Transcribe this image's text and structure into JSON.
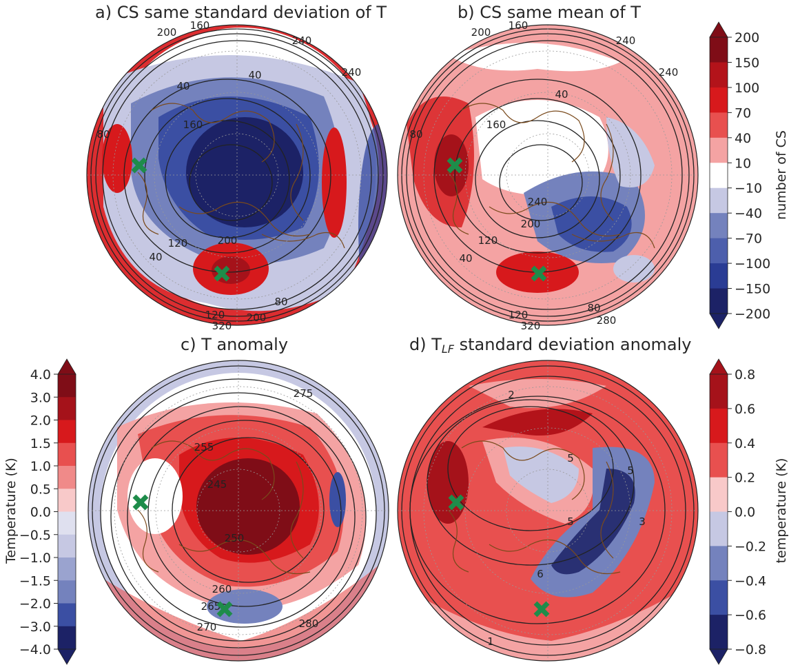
{
  "figure": {
    "panels": [
      {
        "id": "a",
        "title": "a) CS same standard deviation of T",
        "contour_labels": [
          "200",
          "160",
          "240",
          "240",
          "40",
          "40",
          "160",
          "80",
          "200",
          "120",
          "40",
          "120",
          "80",
          "320",
          "200"
        ]
      },
      {
        "id": "b",
        "title": "b) CS same mean of T",
        "contour_labels": [
          "200",
          "160",
          "240",
          "240",
          "40",
          "160",
          "80",
          "240",
          "200",
          "120",
          "40",
          "120",
          "80",
          "320",
          "280"
        ]
      },
      {
        "id": "c",
        "title": "c) T anomaly",
        "contour_labels": [
          "275",
          "255",
          "245",
          "250",
          "260",
          "265",
          "270",
          "280"
        ]
      },
      {
        "id": "d",
        "title_prefix": "d) T",
        "title_sub": "LF",
        "title_suffix": " standard deviation anomaly",
        "contour_labels": [
          "2",
          "5",
          "5",
          "5",
          "3",
          "6",
          "1"
        ]
      }
    ],
    "colorbars": [
      {
        "id": "cs",
        "label": "number of CS",
        "ticks": [
          "200",
          "150",
          "100",
          "70",
          "40",
          "10",
          "−10",
          "−40",
          "−70",
          "−100",
          "−150",
          "−200"
        ]
      },
      {
        "id": "t",
        "label": "Temperature (K)",
        "ticks": [
          "4.0",
          "3.0",
          "2.0",
          "1.5",
          "1.0",
          "0.5",
          "0.0",
          "−0.5",
          "−1.0",
          "−1.5",
          "−2.0",
          "−3.0",
          "−4.0"
        ]
      },
      {
        "id": "tlf",
        "label": "temperature (K)",
        "ticks": [
          "0.8",
          "0.6",
          "0.4",
          "0.2",
          "0.0",
          "−0.2",
          "−0.4",
          "−0.6",
          "−0.8"
        ]
      }
    ],
    "colors": {
      "dark_red": "#7f0d17",
      "red": "#d7191c",
      "light_red": "#f4a3a3",
      "white": "#ffffff",
      "light_blue": "#c6c8e3",
      "blue": "#3b4fa3",
      "dark_blue": "#1c2266",
      "marker": "#1e8c4a",
      "coast": "#7a4a1c",
      "contour": "#222222"
    },
    "markers": {
      "symbol": "x"
    }
  }
}
